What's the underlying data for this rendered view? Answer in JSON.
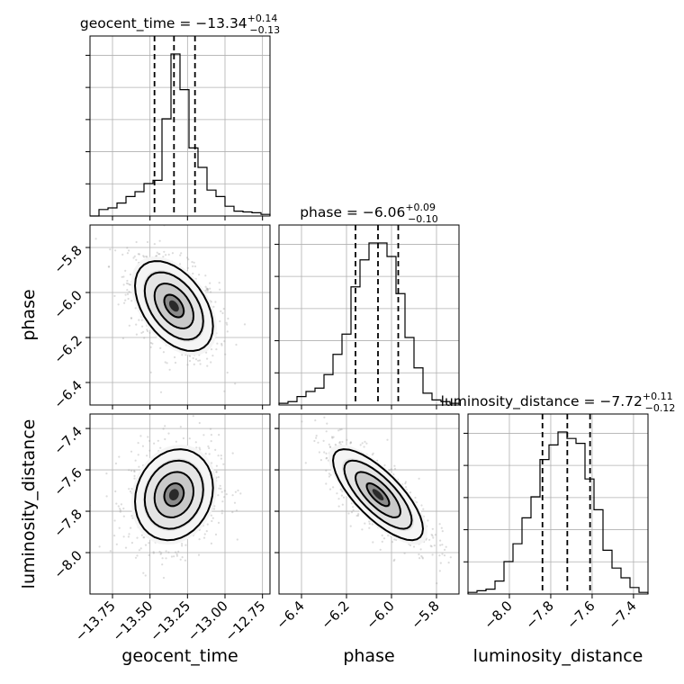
{
  "chart_data": {
    "type": "corner",
    "parameters": [
      "geocent_time",
      "phase",
      "luminosity_distance"
    ],
    "titles": [
      {
        "name": "geocent_time",
        "median": "−13.34",
        "plus": "+0.14",
        "minus": "−0.13",
        "prefix": "geocent_time = "
      },
      {
        "name": "phase",
        "median": "−6.06",
        "plus": "+0.09",
        "minus": "−0.10",
        "prefix": "phase = "
      },
      {
        "name": "luminosity_distance",
        "median": "−7.72",
        "plus": "+0.11",
        "minus": "−0.12",
        "prefix": "luminosity_distance = "
      }
    ],
    "ranges": {
      "geocent_time": [
        -13.9,
        -12.7
      ],
      "phase": [
        -6.5,
        -5.7
      ],
      "luminosity_distance": [
        -8.2,
        -7.33
      ]
    },
    "ticks": {
      "geocent_time": {
        "values": [
          -13.75,
          -13.5,
          -13.25,
          -13.0,
          -12.75
        ],
        "labels": [
          "−13.75",
          "−13.50",
          "−13.25",
          "−13.00",
          "−12.75"
        ]
      },
      "phase": {
        "values": [
          -6.4,
          -6.2,
          -6.0,
          -5.8
        ],
        "labels": [
          "−6.4",
          "−6.2",
          "−6.0",
          "−5.8"
        ]
      },
      "luminosity_distance": {
        "values": [
          -8.0,
          -7.8,
          -7.6,
          -7.4
        ],
        "labels": [
          "−8.0",
          "−7.8",
          "−7.6",
          "−7.4"
        ]
      }
    },
    "quantiles": {
      "geocent_time": [
        -13.47,
        -13.34,
        -13.2
      ],
      "phase": [
        -6.16,
        -6.06,
        -5.97
      ],
      "luminosity_distance": [
        -7.84,
        -7.72,
        -7.61
      ]
    },
    "histograms": {
      "geocent_time": {
        "edges_start": -13.9,
        "bin_width": 0.06,
        "heights": [
          0,
          0.04,
          0.05,
          0.08,
          0.12,
          0.15,
          0.2,
          0.22,
          0.6,
          1.0,
          0.78,
          0.42,
          0.3,
          0.16,
          0.12,
          0.06,
          0.03,
          0.025,
          0.02,
          0.01
        ]
      },
      "phase": {
        "edges_start": -6.5,
        "bin_width": 0.04,
        "heights": [
          0.01,
          0.02,
          0.05,
          0.08,
          0.1,
          0.18,
          0.3,
          0.42,
          0.7,
          0.86,
          0.96,
          0.96,
          0.88,
          0.66,
          0.4,
          0.22,
          0.07,
          0.03,
          0.02,
          0.01
        ]
      },
      "luminosity_distance": {
        "edges_start": -8.2,
        "bin_width": 0.0435,
        "heights": [
          0.01,
          0.02,
          0.03,
          0.08,
          0.2,
          0.31,
          0.47,
          0.6,
          0.83,
          0.92,
          1.0,
          0.96,
          0.93,
          0.71,
          0.52,
          0.27,
          0.16,
          0.1,
          0.04,
          0.01
        ]
      }
    },
    "pair_stats": {
      "geocent_time|phase": {
        "mean": [
          -13.34,
          -6.06
        ],
        "sd": [
          0.13,
          0.1
        ],
        "rho": -0.45
      },
      "geocent_time|luminosity_distance": {
        "mean": [
          -13.34,
          -7.72
        ],
        "sd": [
          0.13,
          0.11
        ],
        "rho": 0.15
      },
      "phase|luminosity_distance": {
        "mean": [
          -6.06,
          -7.72
        ],
        "sd": [
          0.1,
          0.11
        ],
        "rho": -0.75
      }
    },
    "grid": true
  }
}
